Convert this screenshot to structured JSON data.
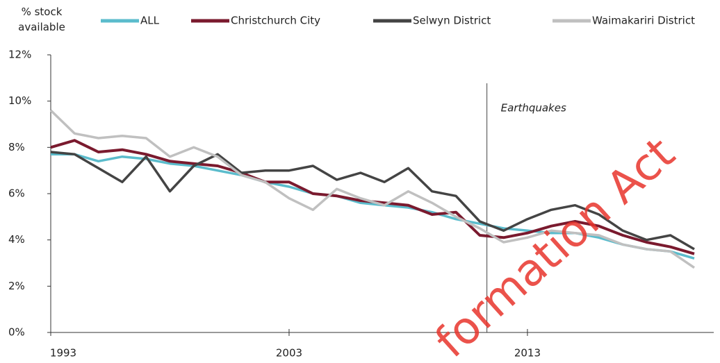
{
  "chart_data": {
    "type": "line",
    "y_label": "% stock available",
    "x": [
      1993,
      1994,
      1995,
      1996,
      1997,
      1998,
      1999,
      2000,
      2001,
      2002,
      2003,
      2004,
      2005,
      2006,
      2007,
      2008,
      2009,
      2010,
      2011,
      2012,
      2013,
      2014,
      2015,
      2016,
      2017,
      2018,
      2019,
      2020
    ],
    "series": [
      {
        "name": "ALL",
        "color": "#5bbccc",
        "values": [
          7.7,
          7.7,
          7.4,
          7.6,
          7.5,
          7.3,
          7.2,
          7.0,
          6.8,
          6.5,
          6.3,
          6.0,
          5.9,
          5.6,
          5.5,
          5.4,
          5.2,
          4.9,
          4.7,
          4.5,
          4.4,
          4.3,
          4.3,
          4.1,
          3.8,
          3.6,
          3.5,
          3.2
        ]
      },
      {
        "name": "Christchurch City",
        "color": "#7a1a2e",
        "values": [
          8.0,
          8.3,
          7.8,
          7.9,
          7.7,
          7.4,
          7.3,
          7.2,
          6.9,
          6.5,
          6.5,
          6.0,
          5.9,
          5.7,
          5.6,
          5.5,
          5.1,
          5.2,
          4.2,
          4.1,
          4.3,
          4.6,
          4.8,
          4.6,
          4.2,
          3.9,
          3.7,
          3.4
        ]
      },
      {
        "name": "Selwyn District",
        "color": "#444444",
        "values": [
          7.8,
          7.7,
          7.1,
          6.5,
          7.6,
          6.1,
          7.2,
          7.7,
          6.9,
          7.0,
          7.0,
          7.2,
          6.6,
          6.9,
          6.5,
          7.1,
          6.1,
          5.9,
          4.8,
          4.4,
          4.9,
          5.3,
          5.5,
          5.1,
          4.4,
          4.0,
          4.2,
          3.6
        ]
      },
      {
        "name": "Waimakariri District",
        "color": "#c0c0c0",
        "values": [
          9.6,
          8.6,
          8.4,
          8.5,
          8.4,
          7.6,
          8.0,
          7.6,
          6.8,
          6.5,
          5.8,
          5.3,
          6.2,
          5.8,
          5.5,
          6.1,
          5.6,
          5.0,
          4.5,
          3.9,
          4.1,
          4.4,
          4.3,
          4.2,
          3.8,
          3.6,
          3.5,
          2.8
        ]
      }
    ],
    "xlim": [
      1993,
      2020.7
    ],
    "xticks": [
      1993,
      2003,
      2013
    ],
    "ylim": [
      0,
      12
    ],
    "yticks": [
      {
        "value": 0,
        "label": "0%"
      },
      {
        "value": 2,
        "label": "2%"
      },
      {
        "value": 4,
        "label": "4%"
      },
      {
        "value": 6,
        "label": "6%"
      },
      {
        "value": 8,
        "label": "8%"
      },
      {
        "value": 10,
        "label": "10%"
      },
      {
        "value": 12,
        "label": "12%"
      }
    ],
    "annotations": [
      {
        "x": 2011.3,
        "label": "Earthquakes"
      }
    ],
    "watermark": "formation Act"
  }
}
